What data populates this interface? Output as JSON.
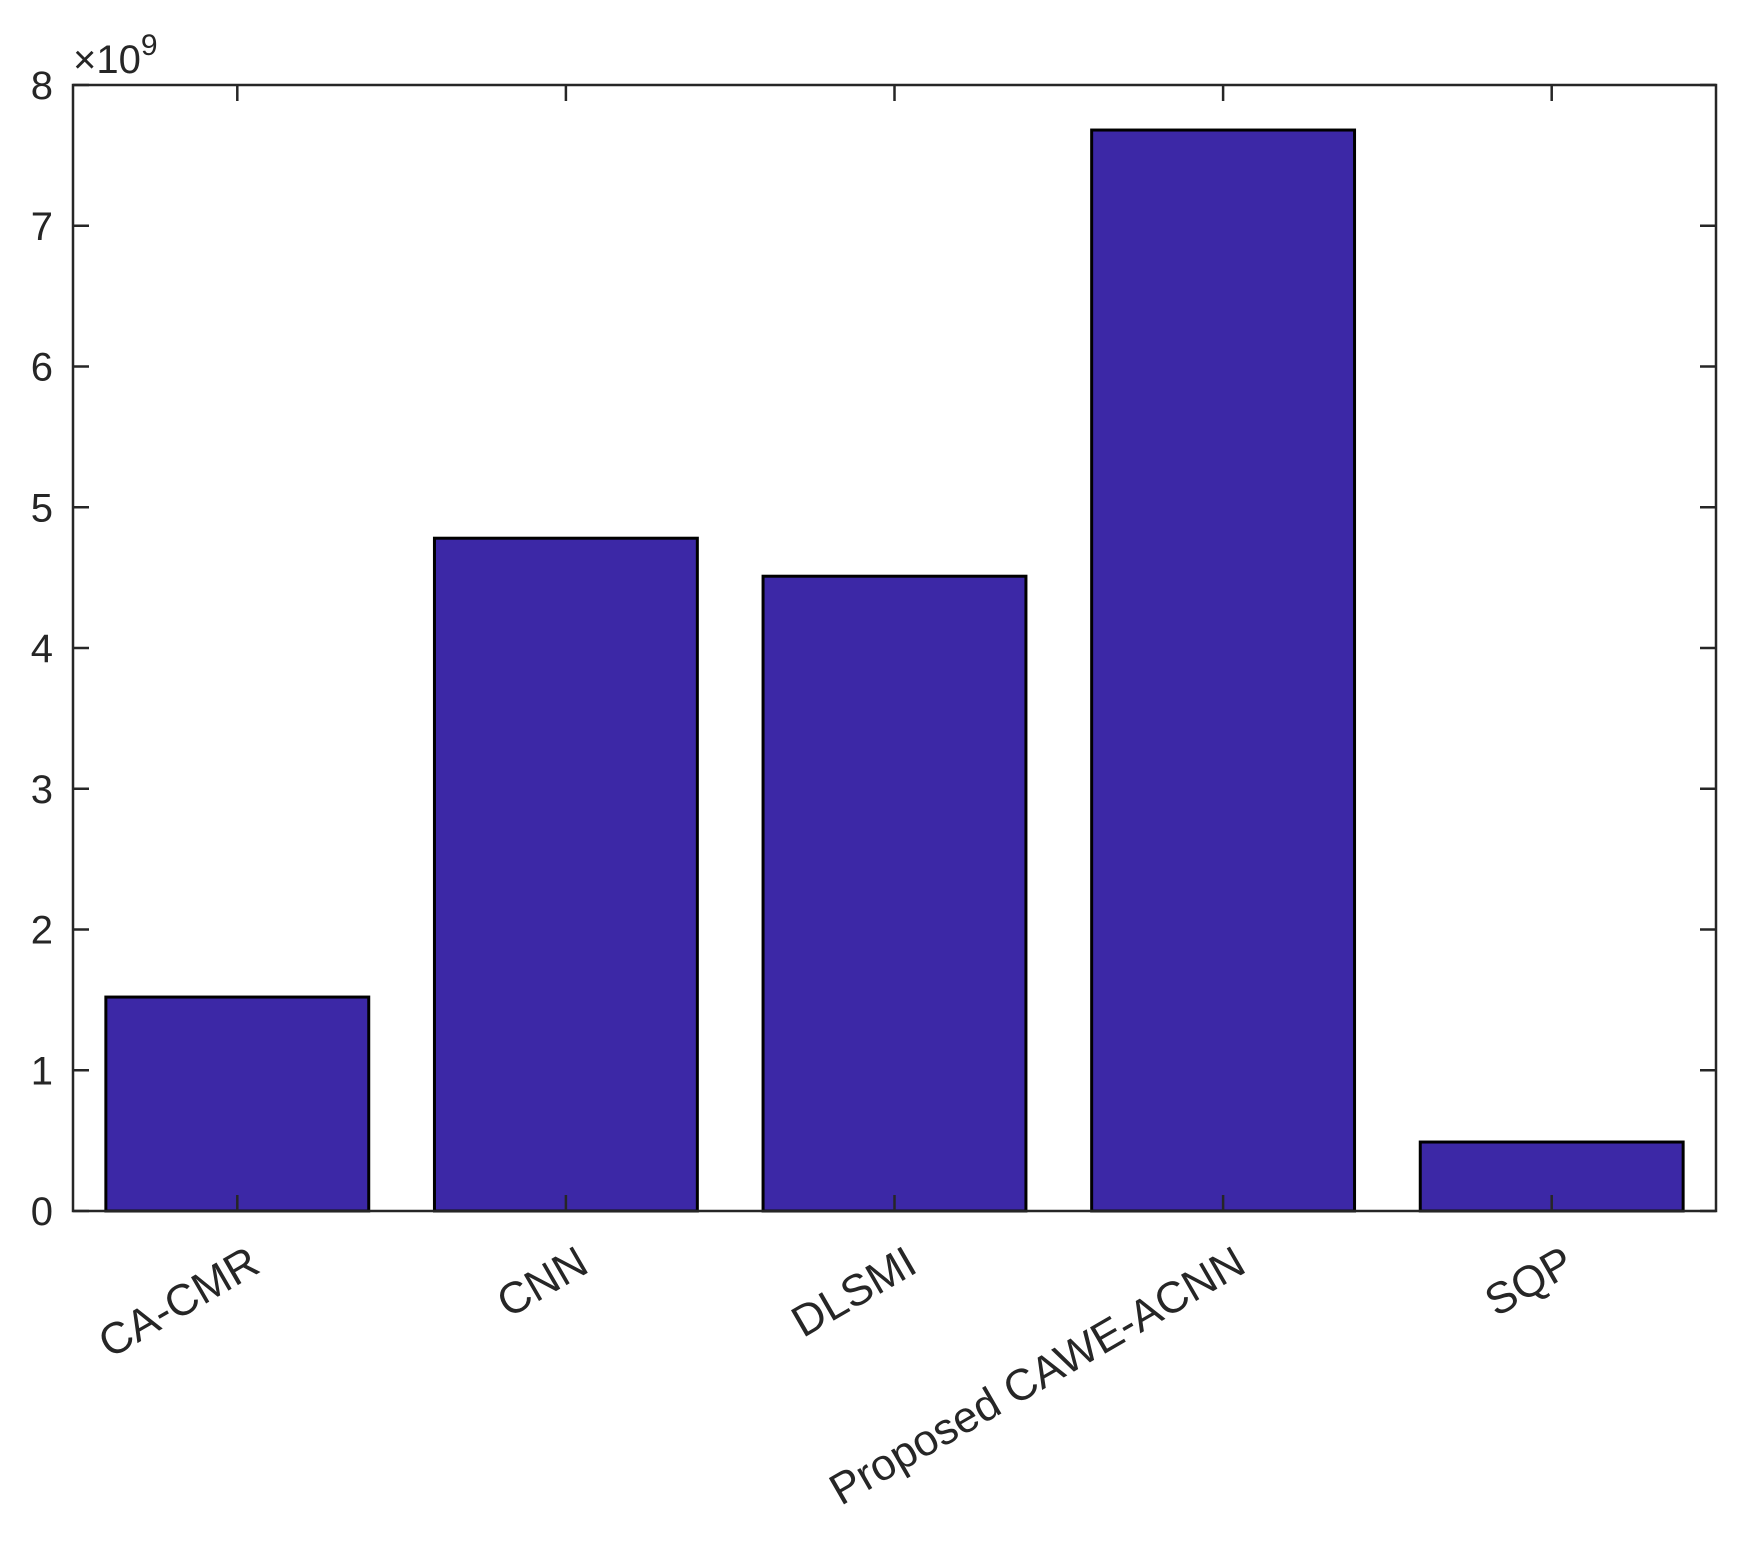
{
  "chart_data": {
    "type": "bar",
    "categories": [
      "CA-CMR",
      "CNN",
      "DLSMI",
      "Proposed CAWE-ACNN",
      "SQP"
    ],
    "values": [
      1.52,
      4.78,
      4.51,
      7.68,
      0.49
    ],
    "value_multiplier": {
      "base": "×10",
      "exponent": "9"
    },
    "ylim": [
      0,
      8
    ],
    "yticks": [
      "0",
      "1",
      "2",
      "3",
      "4",
      "5",
      "6",
      "7",
      "8"
    ],
    "title": "",
    "xlabel": "",
    "ylabel": "",
    "grid": false,
    "legend": false,
    "bar_color": "#3c28a6",
    "edge_color": "#000000"
  }
}
